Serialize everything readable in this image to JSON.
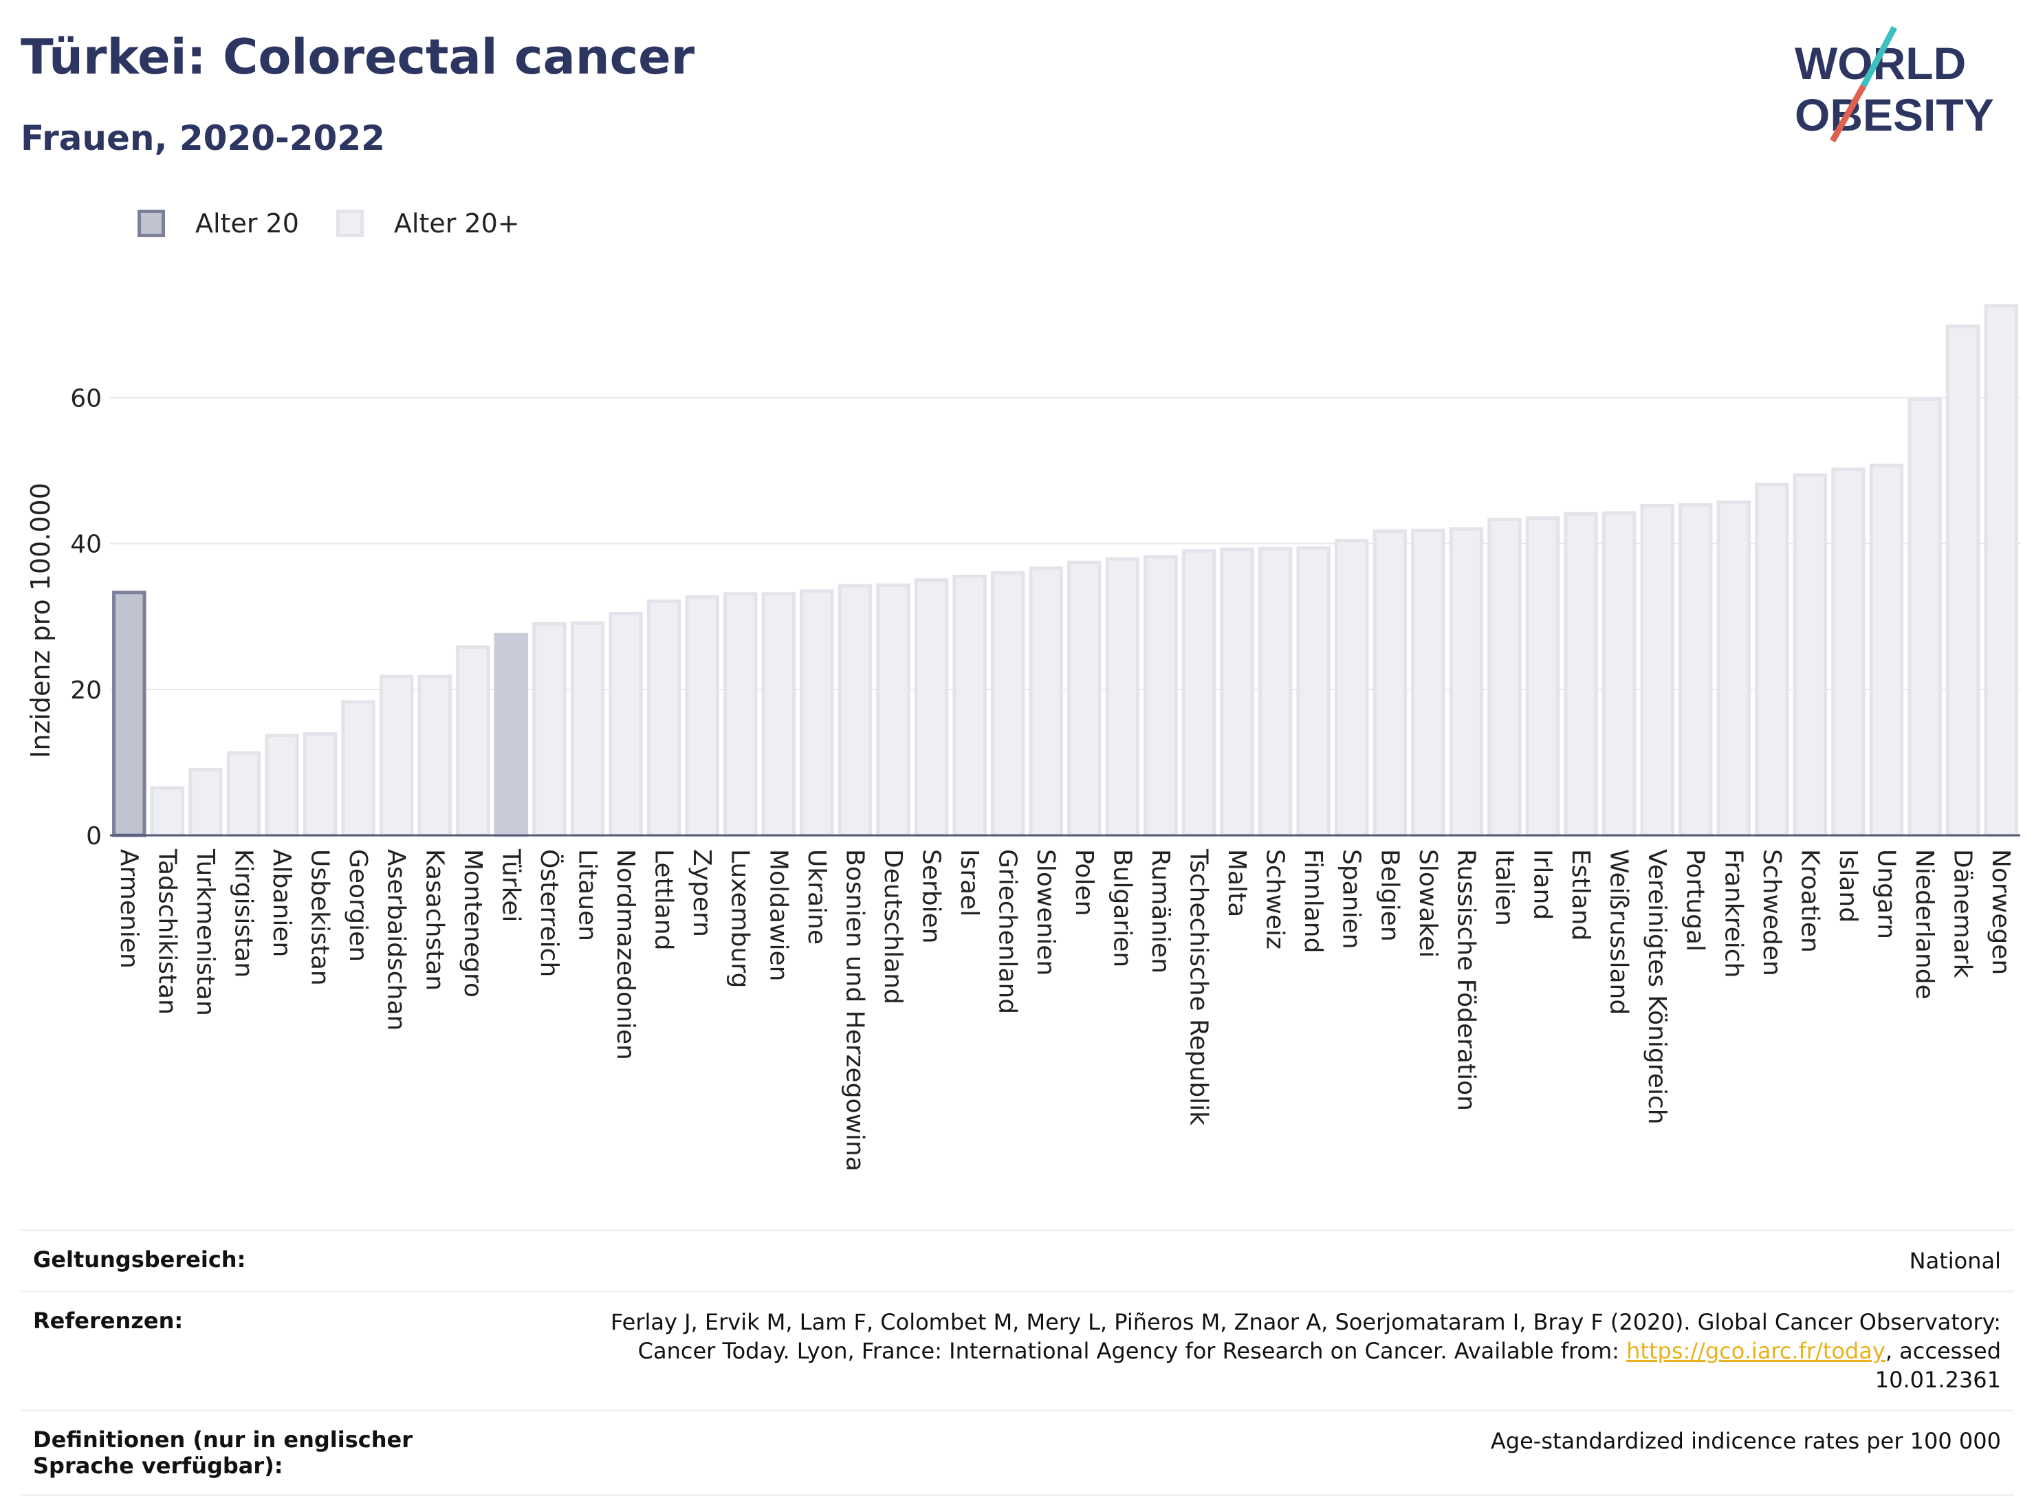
{
  "header": {
    "title": "Türkei: Colorectal cancer",
    "subtitle": "Frauen, 2020-2022"
  },
  "logo": {
    "line1": "WORLD",
    "line2": "OBESITY"
  },
  "legend": {
    "items": [
      {
        "label": "Alter 20",
        "color": "#c0c3d0"
      },
      {
        "label": "Alter 20+",
        "color": "#eeeff3"
      }
    ]
  },
  "chart_data": {
    "type": "bar",
    "ylabel": "Inzidenz pro 100.000",
    "ylim": [
      0,
      74
    ],
    "yticks": [
      0,
      20,
      40,
      60
    ],
    "grid": true,
    "legend_position": "top-left",
    "highlight": "Türkei",
    "categories": [
      "Armenien",
      "Tadschikistan",
      "Turkmenistan",
      "Kirgisistan",
      "Albanien",
      "Usbekistan",
      "Georgien",
      "Aserbaidschan",
      "Kasachstan",
      "Montenegro",
      "Türkei",
      "Österreich",
      "Litauen",
      "Nordmazedonien",
      "Lettland",
      "Zypern",
      "Luxemburg",
      "Moldawien",
      "Ukraine",
      "Bosnien und Herzegowina",
      "Deutschland",
      "Serbien",
      "Israel",
      "Griechenland",
      "Slowenien",
      "Polen",
      "Bulgarien",
      "Rumänien",
      "Tschechische Republik",
      "Malta",
      "Schweiz",
      "Finnland",
      "Spanien",
      "Belgien",
      "Slowakei",
      "Russische Föderation",
      "Italien",
      "Irland",
      "Estland",
      "Weißrussland",
      "Vereinigtes Königreich",
      "Portugal",
      "Frankreich",
      "Schweden",
      "Kroatien",
      "Island",
      "Ungarn",
      "Niederlande",
      "Dänemark",
      "Norwegen"
    ],
    "series": [
      {
        "name": "Alter 20",
        "values": [
          33.3,
          null,
          null,
          null,
          null,
          null,
          null,
          null,
          null,
          null,
          null,
          null,
          null,
          null,
          null,
          null,
          null,
          null,
          null,
          null,
          null,
          null,
          null,
          null,
          null,
          null,
          null,
          null,
          null,
          null,
          null,
          null,
          null,
          null,
          null,
          null,
          null,
          null,
          null,
          null,
          null,
          null,
          null,
          null,
          null,
          null,
          null,
          null,
          null,
          null
        ]
      },
      {
        "name": "Alter 20+",
        "values": [
          null,
          6.5,
          9.0,
          11.3,
          13.7,
          13.9,
          18.3,
          21.8,
          21.8,
          25.8,
          27.5,
          29.0,
          29.1,
          30.4,
          32.1,
          32.7,
          33.1,
          33.1,
          33.5,
          34.2,
          34.3,
          35.0,
          35.5,
          36.0,
          36.6,
          37.4,
          37.9,
          38.2,
          39.0,
          39.2,
          39.3,
          39.4,
          40.4,
          41.7,
          41.8,
          42.0,
          43.3,
          43.5,
          44.1,
          44.2,
          45.2,
          45.3,
          45.7,
          48.1,
          49.4,
          50.2,
          50.7,
          59.8,
          69.8,
          72.6
        ]
      }
    ]
  },
  "footer": {
    "rows": [
      {
        "label": "Geltungsbereich:",
        "value": "National"
      },
      {
        "label": "Referenzen:",
        "value_pre": "Ferlay J, Ervik M, Lam F, Colombet M, Mery L, Piñeros M, Znaor A, Soerjomataram I, Bray F (2020). Global Cancer Observatory: Cancer Today. Lyon, France: International Agency for Research on Cancer. Available from: ",
        "link": "https://gco.iarc.fr/today",
        "value_post": ", accessed 10.01.2361"
      },
      {
        "label": "Definitionen (nur in englischer Sprache verfügbar):",
        "value": "Age-standardized indicence rates per 100 000"
      }
    ]
  }
}
